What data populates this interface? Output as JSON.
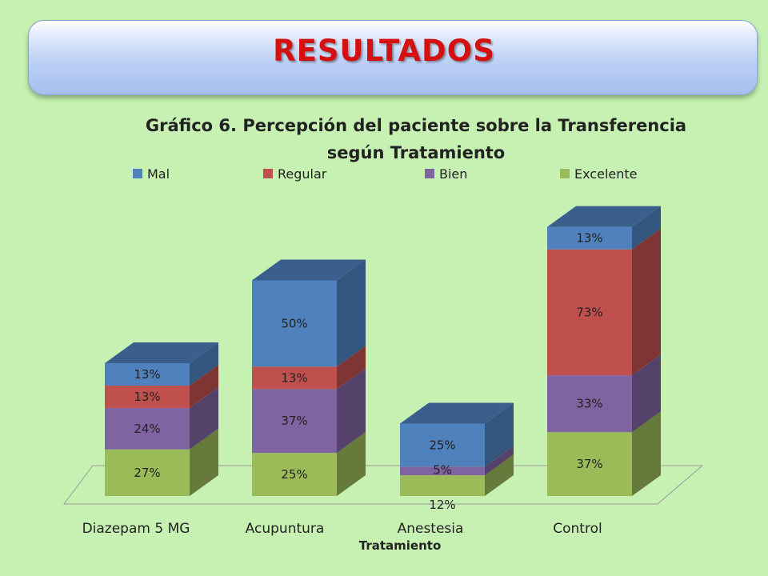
{
  "page": {
    "title": "RESULTADOS"
  },
  "chart_data": {
    "type": "bar",
    "stacked": true,
    "style": "3d",
    "title": "Gráfico 6. Percepción del paciente sobre la Transferencia según Tratamiento",
    "xlabel": "Tratamiento",
    "ylabel": "",
    "legend_position": "top",
    "categories": [
      "Diazepam 5 MG",
      "Acupuntura",
      "Anestesia",
      "Control"
    ],
    "series": [
      {
        "name": "Mal",
        "color": "#4f81bd",
        "values": [
          13,
          50,
          25,
          13
        ],
        "labels": [
          "13%",
          "50%",
          "25%",
          "13%"
        ]
      },
      {
        "name": "Regular",
        "color": "#c0504d",
        "values": [
          13,
          13,
          0,
          73
        ],
        "labels": [
          "13%",
          "13%",
          "",
          "73%"
        ]
      },
      {
        "name": "Bien",
        "color": "#8064a2",
        "values": [
          24,
          37,
          5,
          33
        ],
        "labels": [
          "24%",
          "37%",
          "5%",
          "33%"
        ]
      },
      {
        "name": "Excelente",
        "color": "#9bbb59",
        "values": [
          27,
          25,
          12,
          37
        ],
        "labels": [
          "27%",
          "25%",
          "12%",
          "37%"
        ]
      }
    ]
  }
}
